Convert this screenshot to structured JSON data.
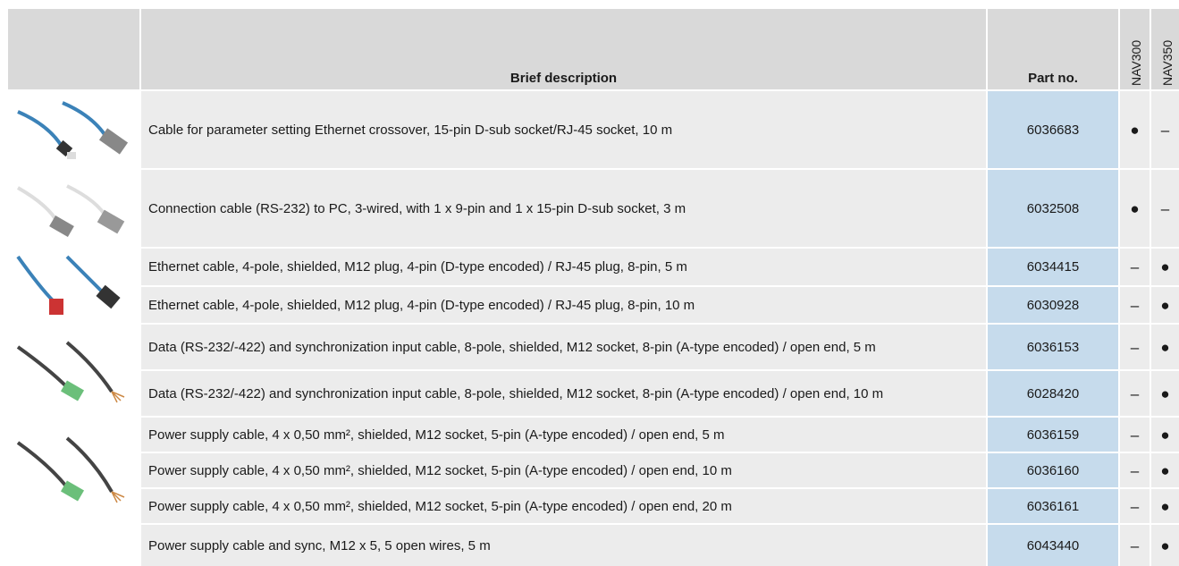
{
  "table": {
    "header": [
      "Brief description",
      "Part no.",
      "NAV300",
      "NAV350"
    ],
    "rows": [
      [
        "Cable for parameter setting Ethernet crossover, 15-pin D-sub socket/RJ-45 socket, 10 m",
        "6036683",
        "●",
        "–"
      ],
      [
        "Connection cable (RS-232) to PC, 3-wired, with 1 x 9-pin and 1 x 15-pin D-sub socket, 3 m",
        "6032508",
        "●",
        "–"
      ],
      [
        "Ethernet cable, 4-pole, shielded, M12 plug, 4-pin (D-type encoded) / RJ-45 plug, 8-pin, 5 m",
        "6034415",
        "–",
        "●"
      ],
      [
        "Ethernet cable, 4-pole, shielded, M12 plug, 4-pin (D-type encoded) / RJ-45 plug, 8-pin, 10 m",
        "6030928",
        "–",
        "●"
      ],
      [
        "Data (RS-232/-422) and synchronization input cable, 8-pole, shielded, M12 socket, 8-pin (A-type encoded) / open end, 5 m",
        "6036153",
        "–",
        "●"
      ],
      [
        "Data (RS-232/-422) and synchronization input cable, 8-pole, shielded, M12 socket, 8-pin (A-type encoded) / open end, 10 m",
        "6028420",
        "–",
        "●"
      ],
      [
        "Power supply cable, 4 x 0,50 mm², shielded, M12 socket, 5-pin (A-type encoded) / open end, 5 m",
        "6036159",
        "–",
        "●"
      ],
      [
        "Power supply cable, 4 x 0,50 mm², shielded, M12 socket, 5-pin (A-type encoded) / open end, 10 m",
        "6036160",
        "–",
        "●"
      ],
      [
        "Power supply cable, 4 x 0,50 mm², shielded, M12 socket, 5-pin (A-type encoded) / open end, 20 m",
        "6036161",
        "–",
        "●"
      ],
      [
        "Power supply cable and sync, M12 x 5, 5 open wires, 5 m",
        "6043440",
        "–",
        "●"
      ]
    ]
  }
}
